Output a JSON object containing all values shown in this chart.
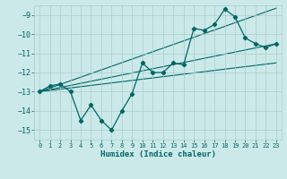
{
  "xlabel": "Humidex (Indice chaleur)",
  "bg_color": "#cce9e9",
  "line_color": "#006666",
  "grid_color": "#aacccc",
  "xlim": [
    -0.5,
    23.5
  ],
  "ylim": [
    -15.5,
    -8.5
  ],
  "xticks": [
    0,
    1,
    2,
    3,
    4,
    5,
    6,
    7,
    8,
    9,
    10,
    11,
    12,
    13,
    14,
    15,
    16,
    17,
    18,
    19,
    20,
    21,
    22,
    23
  ],
  "yticks": [
    -15,
    -14,
    -13,
    -12,
    -11,
    -10,
    -9
  ],
  "main_x": [
    0,
    1,
    2,
    3,
    4,
    5,
    6,
    7,
    8,
    9,
    10,
    11,
    12,
    13,
    14,
    15,
    16,
    17,
    18,
    19,
    20,
    21,
    22,
    23
  ],
  "main_y": [
    -13.0,
    -12.7,
    -12.6,
    -13.0,
    -14.5,
    -13.7,
    -14.5,
    -15.0,
    -14.0,
    -13.1,
    -11.5,
    -12.0,
    -12.0,
    -11.5,
    -11.6,
    -9.7,
    -9.8,
    -9.5,
    -8.7,
    -9.1,
    -10.2,
    -10.5,
    -10.7,
    -10.5
  ],
  "line1_x": [
    0,
    23
  ],
  "line1_y": [
    -13.0,
    -10.5
  ],
  "line2_x": [
    0,
    23
  ],
  "line2_y": [
    -13.0,
    -11.5
  ],
  "line3_x": [
    0,
    23
  ],
  "line3_y": [
    -13.0,
    -8.65
  ]
}
